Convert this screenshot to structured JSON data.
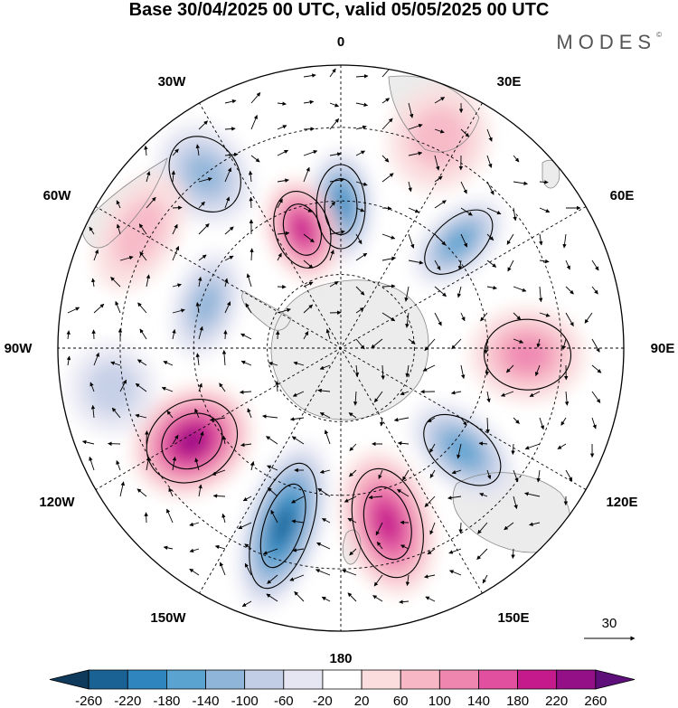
{
  "title": "Base 30/04/2025 00 UTC, valid 05/05/2025 00 UTC",
  "brand": "MODES",
  "brand_mark": "©",
  "longitude_labels": {
    "lon_0": "0",
    "lon_30e": "30E",
    "lon_60e": "60E",
    "lon_90e": "90E",
    "lon_120e": "120E",
    "lon_150e": "150E",
    "lon_180": "180",
    "lon_150w": "150W",
    "lon_120w": "120W",
    "lon_90w": "90W",
    "lon_60w": "60W",
    "lon_30w": "30W"
  },
  "vector_reference": {
    "value": "30"
  },
  "colorbar": {
    "tick_labels": [
      "-260",
      "-220",
      "-180",
      "-140",
      "-100",
      "-60",
      "-20",
      "20",
      "60",
      "100",
      "140",
      "180",
      "220",
      "260"
    ],
    "colors": [
      "#0f3a5c",
      "#1a6294",
      "#2f86be",
      "#5aa2cf",
      "#8fb5d8",
      "#c2cde6",
      "#e6e6f2",
      "#ffffff",
      "#fbdddd",
      "#f7b7c5",
      "#ef86b0",
      "#e0509e",
      "#c41a8b",
      "#931086",
      "#5e0f7a"
    ]
  },
  "anomaly_centers": [
    {
      "sign": "negative",
      "level": 4,
      "lon": 0,
      "lat_ring": "mid"
    },
    {
      "sign": "positive",
      "level": 4,
      "lon": -20,
      "lat_ring": "mid"
    },
    {
      "sign": "negative",
      "level": 3,
      "lon": 50,
      "lat_ring": "mid"
    },
    {
      "sign": "positive",
      "level": 2,
      "lon": 95,
      "lat_ring": "mid"
    },
    {
      "sign": "negative",
      "level": 3,
      "lon": 130,
      "lat_ring": "mid"
    },
    {
      "sign": "positive",
      "level": 4,
      "lon": 165,
      "lat_ring": "mid"
    },
    {
      "sign": "negative",
      "level": 5,
      "lon": -160,
      "lat_ring": "mid"
    },
    {
      "sign": "positive",
      "level": 5,
      "lon": -120,
      "lat_ring": "mid"
    },
    {
      "sign": "negative",
      "level": 2,
      "lon": -70,
      "lat_ring": "mid"
    }
  ]
}
